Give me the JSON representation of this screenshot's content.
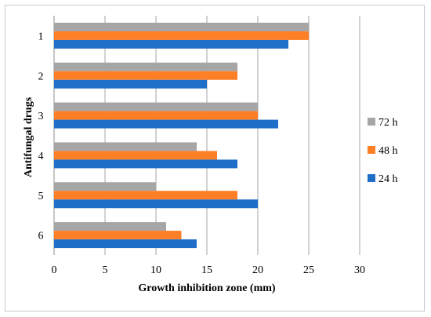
{
  "chart_data": {
    "type": "bar",
    "orientation": "horizontal",
    "title": "",
    "xlabel": "Growth inhibition zone (mm)",
    "ylabel": "Antifungal drugs",
    "categories": [
      "1",
      "2",
      "3",
      "4",
      "5",
      "6"
    ],
    "xlim": [
      0,
      30
    ],
    "xticks": [
      0,
      5,
      10,
      15,
      20,
      25,
      30
    ],
    "grid": "vertical",
    "legend_position": "right",
    "series": [
      {
        "name": "24 h",
        "color": "#1F6FC8",
        "values": [
          23,
          15,
          22,
          18,
          20,
          14
        ]
      },
      {
        "name": "48 h",
        "color": "#FF7F27",
        "values": [
          25,
          18,
          20,
          16,
          18,
          12.5
        ]
      },
      {
        "name": "72 h",
        "color": "#A6A6A6",
        "values": [
          25,
          18,
          20,
          14,
          10,
          11
        ]
      }
    ]
  }
}
